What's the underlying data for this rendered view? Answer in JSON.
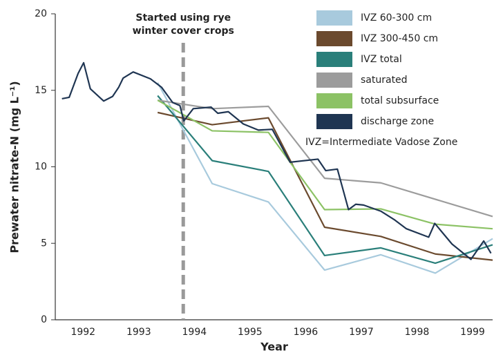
{
  "chart_data": {
    "type": "line",
    "x_label": "Year",
    "y_label": "Prewater nitrate-N (mg L⁻¹)",
    "xlim": [
      1992,
      1999.86
    ],
    "xticks": [
      {
        "value": 1992.5,
        "label": "1992"
      },
      {
        "value": 1993.5,
        "label": "1993"
      },
      {
        "value": 1994.5,
        "label": "1994"
      },
      {
        "value": 1995.5,
        "label": "1995"
      },
      {
        "value": 1996.5,
        "label": "1996"
      },
      {
        "value": 1997.5,
        "label": "1997"
      },
      {
        "value": 1998.5,
        "label": "1998"
      },
      {
        "value": 1999.5,
        "label": "1999"
      }
    ],
    "ylim": [
      0,
      20
    ],
    "yticks": [
      0,
      5,
      10,
      15,
      20
    ],
    "legend": "top-right",
    "legend_note": "IVZ=Intermediate Vadose Zone",
    "annotations": [
      {
        "lines": [
          "Started using rye",
          "winter cover crops"
        ],
        "x": 1994.3
      }
    ],
    "series": [
      {
        "name": "IVZ 60-300 cm",
        "color": "#a8cadd",
        "x": [
          1993.84,
          1994.82,
          1995.83,
          1996.84,
          1997.85,
          1998.83,
          1999.86
        ],
        "values": [
          15.5,
          8.9,
          7.7,
          3.25,
          4.25,
          3.05,
          5.3
        ]
      },
      {
        "name": "IVZ 300-450 cm",
        "color": "#6b4a2e",
        "x": [
          1993.84,
          1994.82,
          1995.83,
          1996.84,
          1997.85,
          1998.83,
          1999.86
        ],
        "values": [
          13.55,
          12.75,
          13.2,
          6.05,
          5.45,
          4.3,
          3.9
        ]
      },
      {
        "name": "IVZ total",
        "color": "#2a7f7a",
        "x": [
          1993.84,
          1994.82,
          1995.83,
          1996.84,
          1997.85,
          1998.83,
          1999.86
        ],
        "values": [
          14.65,
          10.4,
          9.7,
          4.2,
          4.7,
          3.7,
          4.9
        ]
      },
      {
        "name": "saturated",
        "color": "#9c9c9c",
        "x": [
          1993.84,
          1994.82,
          1995.83,
          1996.84,
          1997.85,
          1999.86
        ],
        "values": [
          14.35,
          13.8,
          13.95,
          9.25,
          8.95,
          6.75
        ]
      },
      {
        "name": "total subsurface",
        "color": "#8cc265",
        "x": [
          1993.84,
          1994.82,
          1995.83,
          1996.84,
          1997.85,
          1998.83,
          1999.86
        ],
        "values": [
          14.35,
          12.35,
          12.25,
          7.2,
          7.25,
          6.25,
          5.95
        ]
      },
      {
        "name": "discharge zone",
        "color": "#1f3552",
        "x": [
          1992.12,
          1992.25,
          1992.41,
          1992.51,
          1992.63,
          1992.87,
          1993.03,
          1993.14,
          1993.22,
          1993.4,
          1993.71,
          1993.91,
          1994.11,
          1994.24,
          1994.31,
          1994.48,
          1994.8,
          1994.92,
          1995.11,
          1995.38,
          1995.65,
          1995.9,
          1996.22,
          1996.72,
          1996.86,
          1997.07,
          1997.27,
          1997.4,
          1997.54,
          1997.85,
          1998.09,
          1998.31,
          1998.71,
          1998.82,
          1999.13,
          1999.47,
          1999.7,
          1999.83
        ],
        "values": [
          14.45,
          14.54,
          16.1,
          16.8,
          15.1,
          14.3,
          14.6,
          15.2,
          15.8,
          16.2,
          15.75,
          15.2,
          14.2,
          14.0,
          13.0,
          13.8,
          13.9,
          13.5,
          13.6,
          12.8,
          12.4,
          12.45,
          10.3,
          10.5,
          9.75,
          9.85,
          7.2,
          7.55,
          7.5,
          7.1,
          6.55,
          5.95,
          5.4,
          6.3,
          4.95,
          3.95,
          5.15,
          4.35
        ]
      }
    ]
  }
}
